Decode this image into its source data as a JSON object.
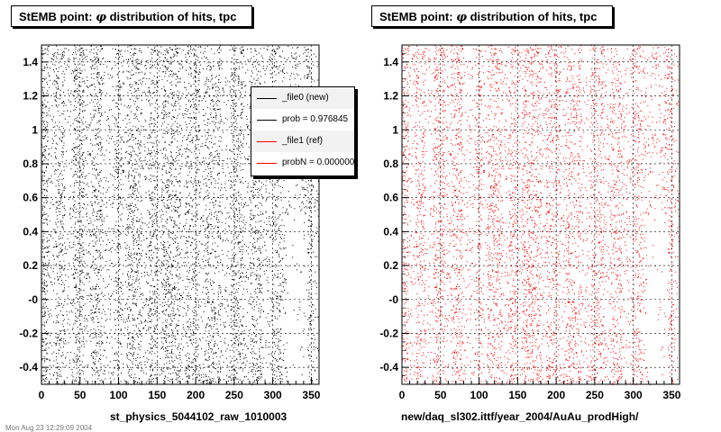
{
  "chart_data": [
    {
      "type": "scatter",
      "title_prefix": "StEMB point:",
      "title_symbol": "φ",
      "title_suffix": "distribution of hits, tpc",
      "xlabel": "st_physics_5044102_raw_1010003",
      "ylabel": "",
      "xlim": [
        0,
        360
      ],
      "ylim": [
        -0.5,
        1.5
      ],
      "x_ticks": [
        "0",
        "50",
        "100",
        "150",
        "200",
        "250",
        "300",
        "350"
      ],
      "y_ticks": [
        "-0.4",
        "-0.2",
        "-0",
        "0.2",
        "0.4",
        "0.6",
        "0.8",
        "1",
        "1.2",
        "1.4"
      ],
      "grid": true,
      "series": [
        {
          "name": "_file0 (new)",
          "color": "#000000"
        }
      ],
      "legend": {
        "placement": "top-right",
        "entries": [
          {
            "label": "_file0 (new)",
            "color": "#000000"
          },
          {
            "label": "prob = 0.976845",
            "color": "#000000"
          },
          {
            "label": "_file1 (ref)",
            "color": "#ff0000"
          },
          {
            "label": "probN = 0.000000",
            "color": "#ff0000"
          }
        ]
      },
      "dense_x_bands": [
        [
          0,
          8
        ],
        [
          18,
          30
        ],
        [
          40,
          55
        ],
        [
          63,
          78
        ],
        [
          95,
          103
        ],
        [
          110,
          130
        ],
        [
          138,
          150
        ],
        [
          155,
          180
        ],
        [
          186,
          205
        ],
        [
          212,
          226
        ],
        [
          228,
          232
        ],
        [
          245,
          262
        ],
        [
          270,
          285
        ],
        [
          300,
          310
        ],
        [
          340,
          350
        ]
      ],
      "sparse_region": {
        "x": [
          318,
          345
        ],
        "y": [
          -0.5,
          0.5
        ]
      }
    },
    {
      "type": "scatter",
      "title_prefix": "StEMB point:",
      "title_symbol": "φ",
      "title_suffix": "distribution of hits, tpc",
      "xlabel": "new/daq_sl302.ittf/year_2004/AuAu_prodHigh/",
      "ylabel": "",
      "xlim": [
        0,
        360
      ],
      "ylim": [
        -0.5,
        1.5
      ],
      "x_ticks": [
        "0",
        "50",
        "100",
        "150",
        "200",
        "250",
        "300",
        "350"
      ],
      "y_ticks": [
        "-0.4",
        "-0.2",
        "-0",
        "0.2",
        "0.4",
        "0.6",
        "0.8",
        "1",
        "1.2",
        "1.4"
      ],
      "grid": true,
      "series": [
        {
          "name": "_file1 (ref)",
          "color": "#ff0000"
        }
      ],
      "dense_x_bands": [
        [
          0,
          8
        ],
        [
          18,
          30
        ],
        [
          40,
          55
        ],
        [
          63,
          78
        ],
        [
          95,
          103
        ],
        [
          110,
          130
        ],
        [
          138,
          150
        ],
        [
          155,
          180
        ],
        [
          186,
          205
        ],
        [
          212,
          226
        ],
        [
          228,
          232
        ],
        [
          245,
          262
        ],
        [
          270,
          285
        ],
        [
          300,
          310
        ],
        [
          340,
          350
        ]
      ],
      "sparse_region": {
        "x": [
          318,
          345
        ],
        "y": [
          -0.5,
          0.5
        ]
      }
    }
  ],
  "footer_stamp": "Mon Aug 23 12:29:09 2004"
}
